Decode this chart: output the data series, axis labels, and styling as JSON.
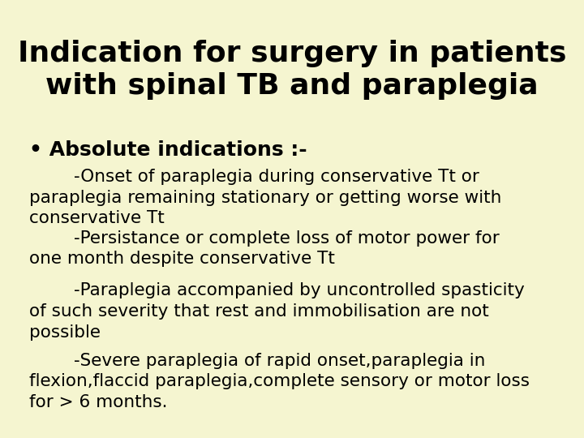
{
  "title_line1": "Indication for surgery in patients",
  "title_line2": "with spinal TB and paraplegia",
  "background_color": "#f5f5d0",
  "title_color": "#000000",
  "text_color": "#000000",
  "bullet_header": "• Absolute indications :-",
  "bullet_items": [
    "        -Onset of paraplegia during conservative Tt or\nparaplegia remaining stationary or getting worse with\nconservative Tt",
    "        -Persistance or complete loss of motor power for\none month despite conservative Tt",
    "        -Paraplegia accompanied by uncontrolled spasticity\nof such severity that rest and immobilisation are not\npossible",
    "        -Severe paraplegia of rapid onset,paraplegia in\nflexion,flaccid paraplegia,complete sensory or motor loss\nfor > 6 months."
  ],
  "title_fontsize": 26,
  "bullet_header_fontsize": 18,
  "bullet_fontsize": 15.5
}
